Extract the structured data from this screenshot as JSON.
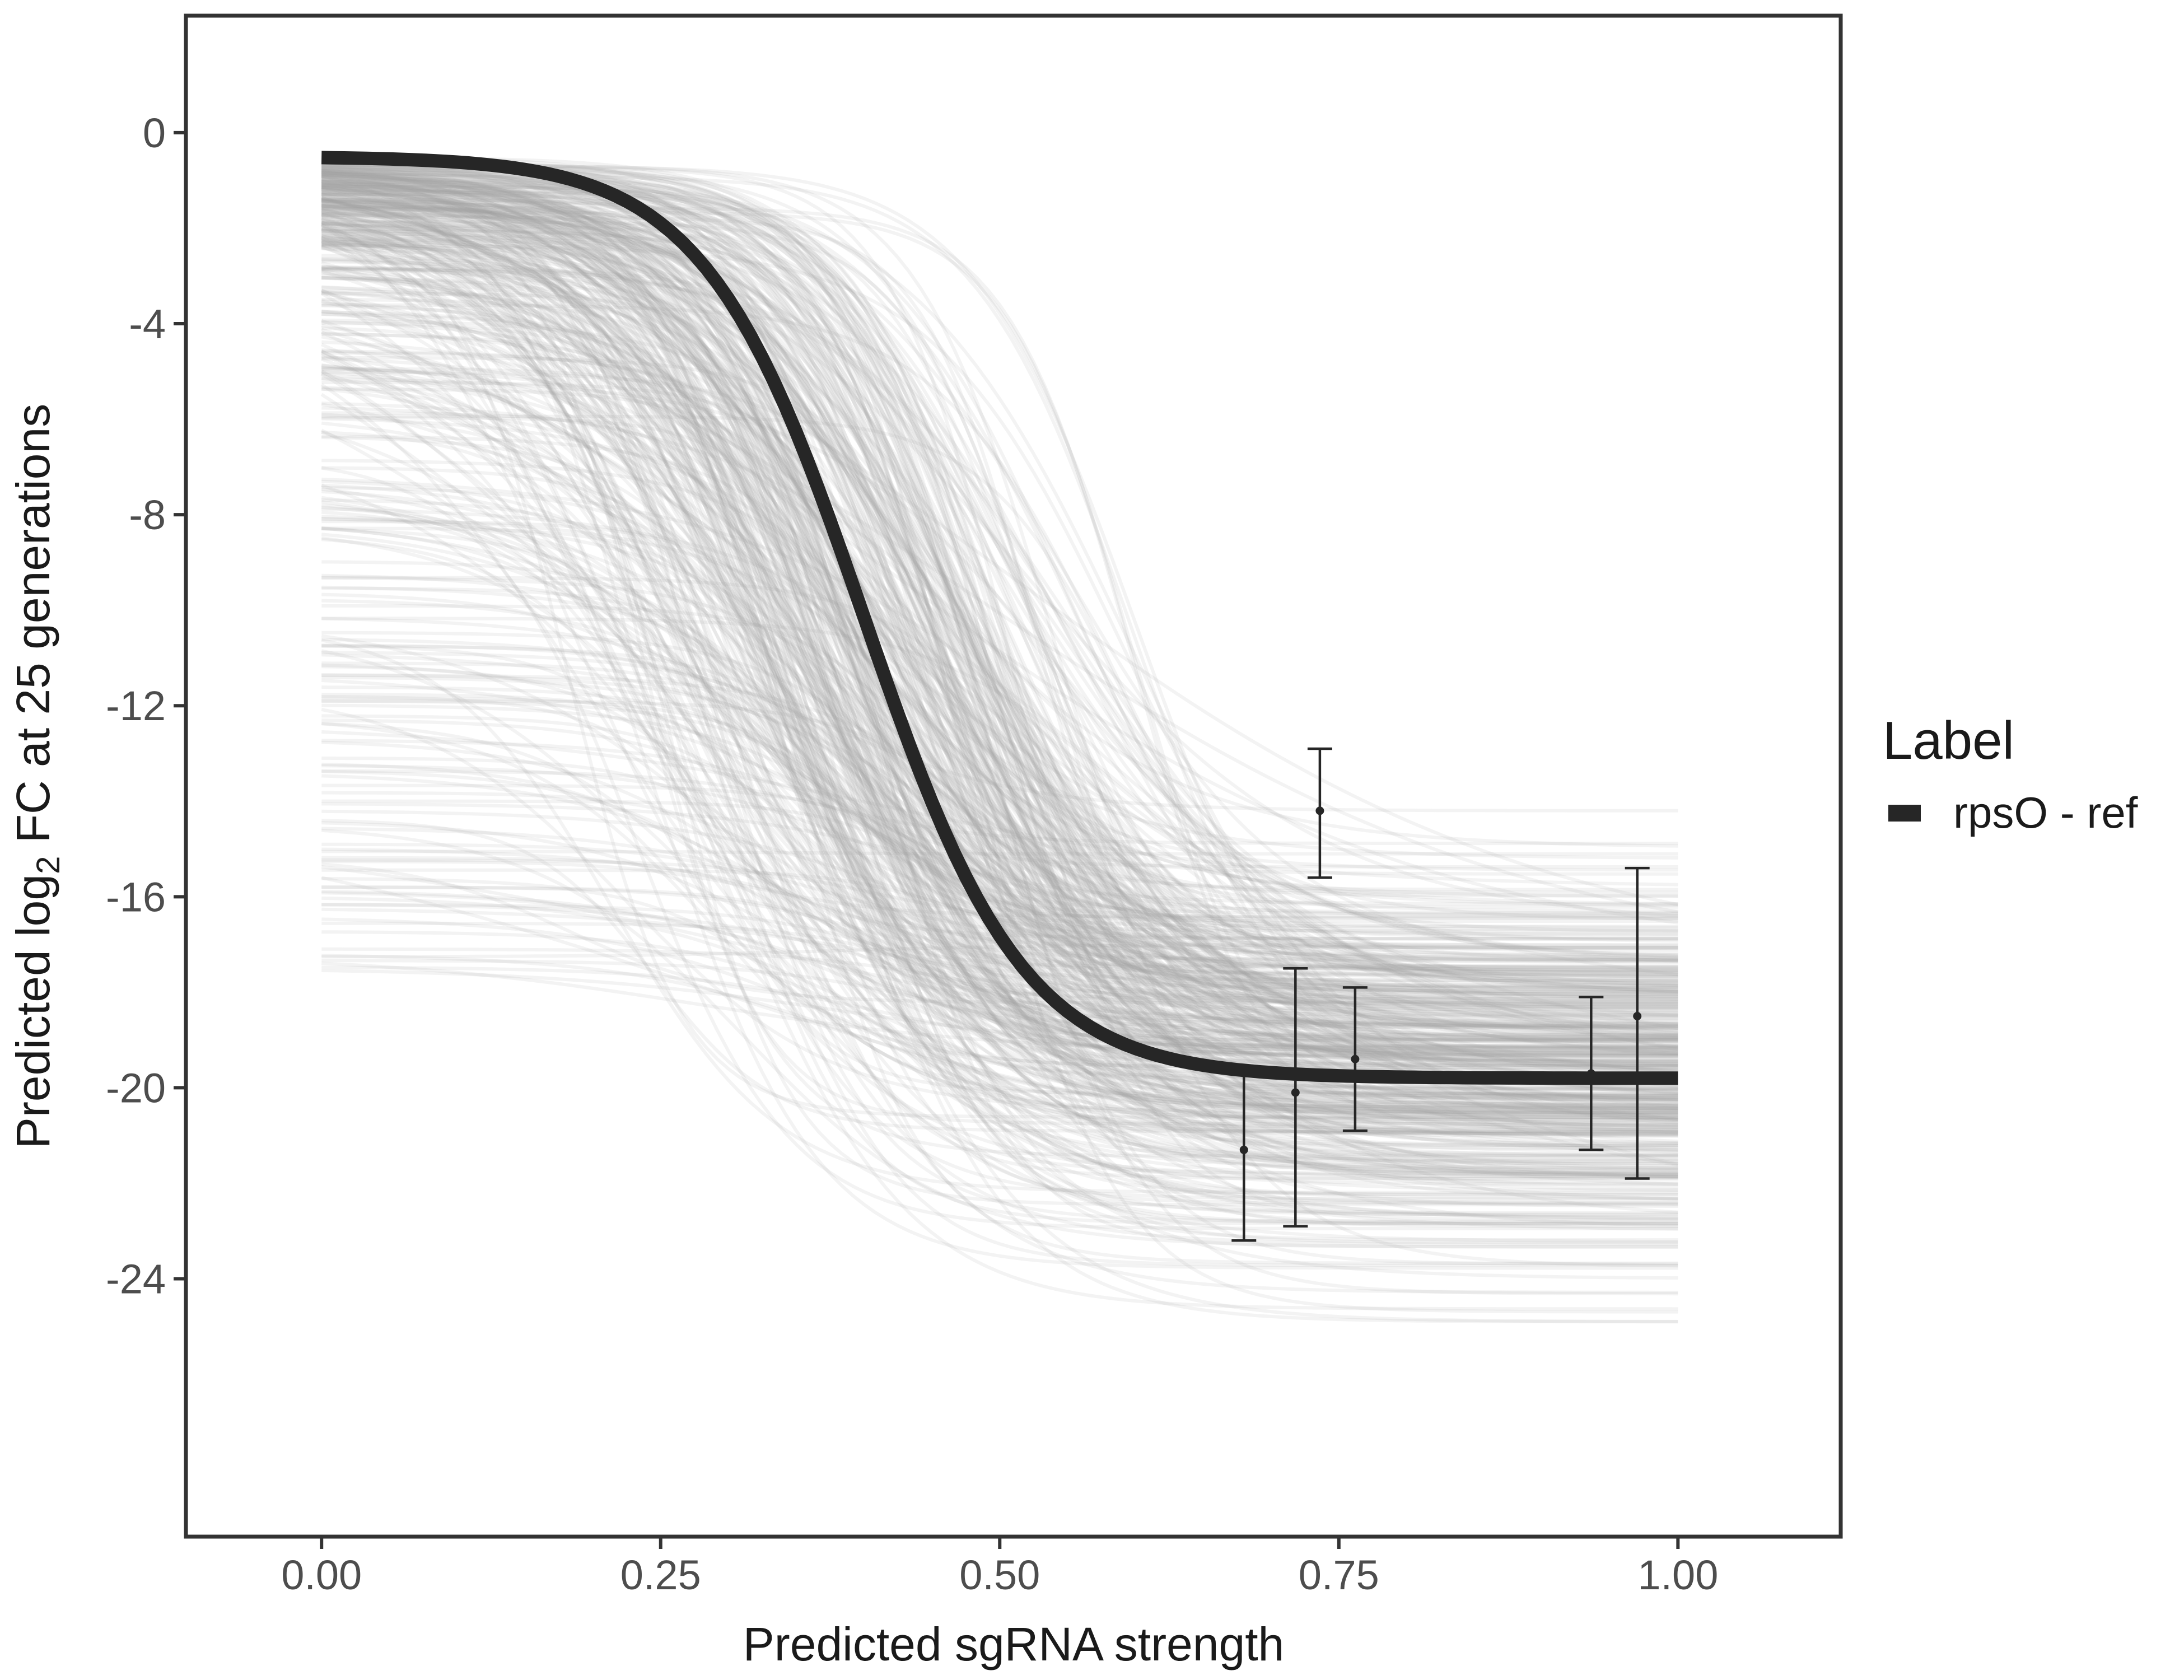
{
  "chart_data": {
    "type": "line",
    "xlabel": "Predicted sgRNA strength",
    "ylabel": {
      "prefix": "Predicted  log",
      "subscript": "2",
      "suffix": " FC at 25 generations"
    },
    "xlim": [
      -0.1,
      1.12
    ],
    "ylim": [
      -29.4,
      2.45
    ],
    "x_ticks": [
      0.0,
      0.25,
      0.5,
      0.75,
      1.0
    ],
    "x_tick_labels": [
      "0.00",
      "0.25",
      "0.50",
      "0.75",
      "1.00"
    ],
    "y_ticks": [
      0,
      -4,
      -8,
      -12,
      -16,
      -20,
      -24
    ],
    "y_tick_labels": [
      "0",
      "-4",
      "-8",
      "-12",
      "-16",
      "-20",
      "-24"
    ],
    "grid": false,
    "legend": {
      "title": "Label",
      "placement": "right",
      "entries": [
        {
          "name": "rpsO - ref",
          "color": "#262626"
        }
      ]
    },
    "series": [
      {
        "name": "rpsO - ref",
        "color": "#262626",
        "model": {
          "low": -19.8,
          "high": -0.5,
          "midpoint": 0.4,
          "slope": 17
        },
        "x_range": [
          0.0,
          1.0
        ]
      }
    ],
    "posterior_draws": {
      "color": "#a6a6a6",
      "opacity": 0.13,
      "count": 500,
      "description_of_spread": {
        "high_range": [
          -17.5,
          -0.5
        ],
        "low_range": [
          -24.9,
          -14.2
        ],
        "midpoint_range": [
          0.18,
          0.6
        ],
        "slope_range": [
          5,
          24
        ]
      }
    },
    "error_bars": [
      {
        "x": 0.68,
        "y": -21.3,
        "ymin": -23.2,
        "ymax": -19.6
      },
      {
        "x": 0.718,
        "y": -20.1,
        "ymin": -22.9,
        "ymax": -17.5
      },
      {
        "x": 0.736,
        "y": -14.2,
        "ymin": -15.6,
        "ymax": -12.9
      },
      {
        "x": 0.762,
        "y": -19.4,
        "ymin": -20.9,
        "ymax": -17.9
      },
      {
        "x": 0.936,
        "y": -19.7,
        "ymin": -21.3,
        "ymax": -18.1
      },
      {
        "x": 0.97,
        "y": -18.5,
        "ymin": -21.9,
        "ymax": -15.4
      }
    ]
  }
}
